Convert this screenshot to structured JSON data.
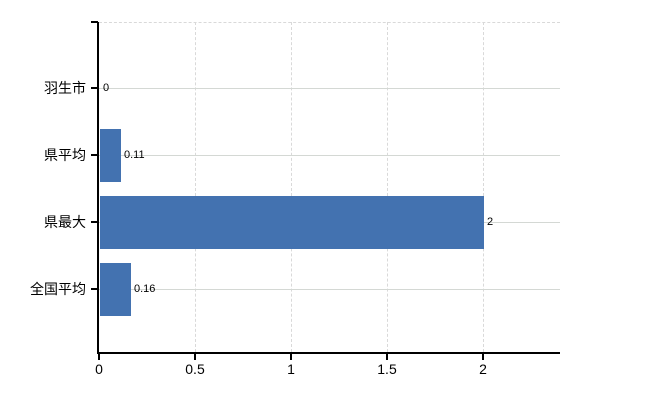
{
  "chart_data": {
    "type": "bar",
    "orientation": "horizontal",
    "title": "",
    "categories": [
      "羽生市",
      "県平均",
      "県最大",
      "全国平均"
    ],
    "values": [
      0,
      0.11,
      2,
      0.16
    ],
    "value_labels": [
      "0",
      "0.11",
      "2",
      "0.16"
    ],
    "xlim": [
      0,
      2.4
    ],
    "x_ticks": [
      0,
      0.5,
      1,
      1.5,
      2
    ],
    "x_tick_labels": [
      "0",
      "0.5",
      "1",
      "1.5",
      "2"
    ],
    "grid": true,
    "legend_position": "none",
    "bar_color": "#4372b0",
    "axis_color": "#000000",
    "vertical_gridline_color": "#d9d9d9",
    "row_gridline_color": "#d4d8d4",
    "background_color": "#ffffff",
    "text_color": "#000000"
  }
}
